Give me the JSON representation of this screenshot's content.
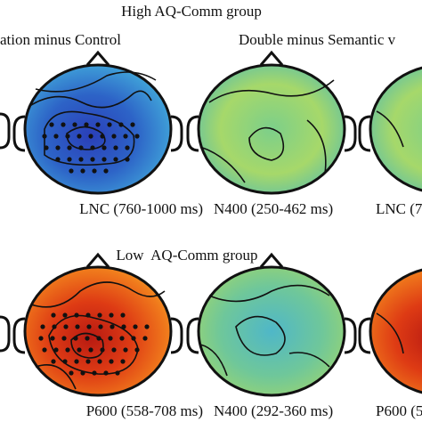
{
  "rows": [
    {
      "title": "High AQ-Comm group",
      "contrast_labels": [
        "ation minus Control",
        "Double minus Semantic v"
      ],
      "map_labels": [
        "LNC (760-1000 ms)",
        "N400 (250-462 ms)",
        "LNC (7"
      ]
    },
    {
      "title": "Low  AQ-Comm group",
      "map_labels": [
        "P600 (558-708 ms)",
        "N400 (292-360 ms)",
        "P600 (5"
      ]
    }
  ]
}
